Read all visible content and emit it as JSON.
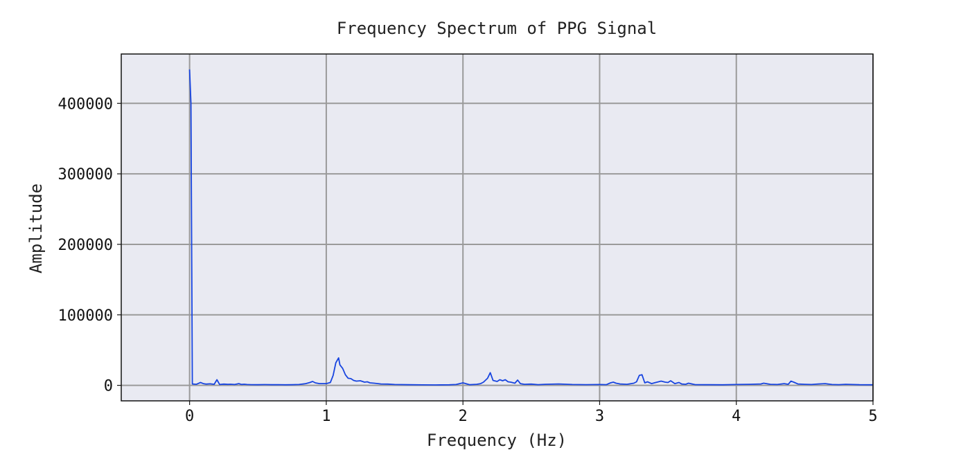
{
  "chart_data": {
    "type": "line",
    "title": "Frequency Spectrum of PPG Signal",
    "xlabel": "Frequency (Hz)",
    "ylabel": "Amplitude",
    "xlim": [
      -0.5,
      5
    ],
    "ylim": [
      -22000,
      470000
    ],
    "xticks": [
      0,
      1,
      2,
      3,
      4,
      5
    ],
    "xtick_labels": [
      "0",
      "1",
      "2",
      "3",
      "4",
      "5"
    ],
    "yticks": [
      0,
      100000,
      200000,
      300000,
      400000
    ],
    "ytick_labels": [
      "0",
      "100000",
      "200000",
      "300000",
      "400000"
    ],
    "grid": true,
    "colors": {
      "line": "#1744e0",
      "background": "#e9eaf2",
      "grid": "#9a9a9a"
    },
    "series": [
      {
        "x": [
          0,
          0.01,
          0.02,
          0.05,
          0.08,
          0.1,
          0.12,
          0.15,
          0.18,
          0.2,
          0.22,
          0.25,
          0.28,
          0.3,
          0.33,
          0.36,
          0.38,
          0.4,
          0.42,
          0.45,
          0.5,
          0.55,
          0.6,
          0.65,
          0.7,
          0.75,
          0.8,
          0.85,
          0.88,
          0.9,
          0.92,
          0.95,
          1.0,
          1.03,
          1.05,
          1.07,
          1.09,
          1.1,
          1.12,
          1.14,
          1.16,
          1.18,
          1.2,
          1.22,
          1.25,
          1.28,
          1.3,
          1.32,
          1.35,
          1.4,
          1.45,
          1.5,
          1.6,
          1.7,
          1.8,
          1.9,
          1.95,
          2.0,
          2.05,
          2.1,
          2.13,
          2.15,
          2.18,
          2.2,
          2.22,
          2.25,
          2.27,
          2.29,
          2.31,
          2.33,
          2.35,
          2.38,
          2.4,
          2.42,
          2.45,
          2.5,
          2.55,
          2.6,
          2.7,
          2.8,
          2.9,
          3.0,
          3.05,
          3.08,
          3.1,
          3.12,
          3.15,
          3.2,
          3.25,
          3.27,
          3.29,
          3.31,
          3.33,
          3.35,
          3.38,
          3.4,
          3.43,
          3.45,
          3.48,
          3.5,
          3.52,
          3.55,
          3.58,
          3.6,
          3.63,
          3.65,
          3.7,
          3.8,
          3.9,
          4.0,
          4.1,
          4.18,
          4.2,
          4.25,
          4.3,
          4.35,
          4.38,
          4.4,
          4.42,
          4.45,
          4.5,
          4.55,
          4.6,
          4.65,
          4.7,
          4.75,
          4.8,
          4.9,
          5.0
        ],
        "values": [
          448000,
          400000,
          2000,
          1500,
          4000,
          2500,
          1800,
          2200,
          1500,
          8000,
          1200,
          1800,
          1400,
          1600,
          1200,
          2500,
          1300,
          1600,
          1200,
          1000,
          900,
          1100,
          900,
          1000,
          800,
          900,
          1200,
          2500,
          4000,
          5500,
          3500,
          2500,
          2500,
          4000,
          14000,
          32000,
          39000,
          29000,
          24000,
          15000,
          10000,
          9500,
          7000,
          6000,
          6500,
          4500,
          5000,
          3500,
          3000,
          2000,
          1800,
          1200,
          900,
          700,
          600,
          800,
          1200,
          3500,
          900,
          1500,
          2500,
          4500,
          10000,
          18000,
          7000,
          5500,
          8000,
          6500,
          8000,
          5000,
          4500,
          3000,
          7500,
          2500,
          1500,
          1800,
          1000,
          1500,
          2000,
          1200,
          1000,
          1200,
          1000,
          3500,
          4500,
          3000,
          2000,
          1500,
          3000,
          5000,
          14000,
          15000,
          3500,
          5000,
          2500,
          3500,
          5000,
          6000,
          4500,
          4000,
          6500,
          2500,
          4000,
          2000,
          1500,
          3000,
          1000,
          900,
          800,
          1200,
          1500,
          2000,
          3000,
          1500,
          1200,
          2500,
          1500,
          6000,
          4500,
          2000,
          1500,
          1200,
          2000,
          2500,
          1200,
          1000,
          1500,
          900,
          800
        ]
      }
    ]
  }
}
